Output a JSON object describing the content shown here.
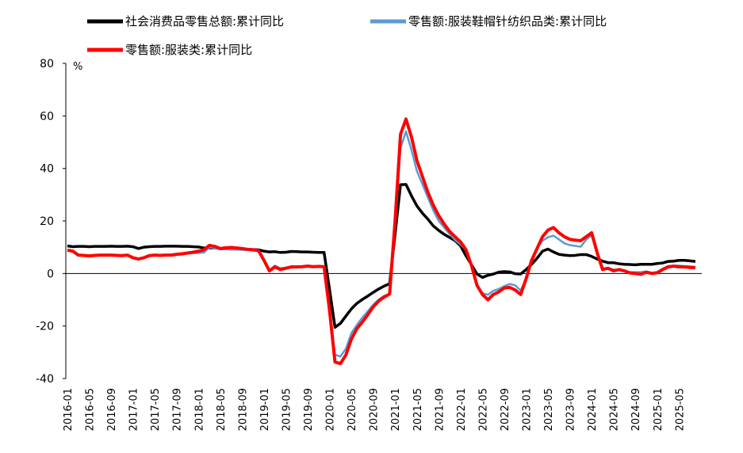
{
  "chart_data": {
    "type": "line",
    "y_unit": "%",
    "categories": [
      "2016-01",
      null,
      null,
      null,
      "2016-05",
      null,
      null,
      null,
      "2016-09",
      null,
      null,
      null,
      "2017-01",
      null,
      null,
      null,
      "2017-05",
      null,
      null,
      null,
      "2017-09",
      null,
      null,
      null,
      "2018-01",
      null,
      null,
      null,
      "2018-05",
      null,
      null,
      null,
      "2018-09",
      null,
      null,
      null,
      "2019-01",
      null,
      null,
      null,
      "2019-05",
      null,
      null,
      null,
      "2019-09",
      null,
      null,
      null,
      "2020-01",
      null,
      null,
      null,
      "2020-05",
      null,
      null,
      null,
      "2020-09",
      null,
      null,
      null,
      "2021-01",
      null,
      null,
      null,
      "2021-05",
      null,
      null,
      null,
      "2021-09",
      null,
      null,
      null,
      "2022-01",
      null,
      null,
      null,
      "2022-05",
      null,
      null,
      null,
      "2022-09",
      null,
      null,
      null,
      "2023-01",
      null,
      null,
      null,
      "2023-05",
      null,
      null,
      null,
      "2023-09",
      null,
      null,
      null,
      "2024-01",
      null,
      null,
      null,
      "2024-05",
      null,
      null,
      null,
      "2024-09",
      null,
      null,
      null,
      "2025-01",
      null,
      null,
      null,
      "2025-05",
      null,
      null,
      null
    ],
    "series": [
      {
        "name": "社会消费品零售总额:累计同比",
        "color": "#000000",
        "values": [
          10.5,
          10.2,
          10.3,
          10.3,
          10.2,
          10.3,
          10.3,
          10.3,
          10.4,
          10.3,
          10.3,
          10.4,
          10.2,
          9.5,
          10.0,
          10.2,
          10.3,
          10.3,
          10.4,
          10.4,
          10.4,
          10.3,
          10.3,
          10.2,
          10.1,
          9.7,
          9.8,
          9.7,
          9.5,
          9.4,
          9.3,
          9.3,
          9.3,
          9.2,
          9.1,
          9.0,
          8.5,
          8.2,
          8.3,
          8.0,
          8.1,
          8.4,
          8.3,
          8.2,
          8.2,
          8.1,
          8.0,
          8.0,
          -6,
          -20.5,
          -19,
          -16.2,
          -13.5,
          -11.4,
          -9.9,
          -8.6,
          -7.2,
          -5.9,
          -4.8,
          -3.9,
          15,
          33.8,
          33.9,
          29.6,
          25.7,
          23,
          20.7,
          18.1,
          16.4,
          14.9,
          13.7,
          12.5,
          10.5,
          6.7,
          3.3,
          -0.2,
          -1.5,
          -0.7,
          -0.2,
          0.5,
          0.7,
          0.6,
          -0.1,
          -0.2,
          1.5,
          3.5,
          5.8,
          8.5,
          9.3,
          8.2,
          7.3,
          7.0,
          6.8,
          6.9,
          7.2,
          7.2,
          6.5,
          5.5,
          4.7,
          4.1,
          4.1,
          3.7,
          3.5,
          3.4,
          3.3,
          3.5,
          3.5,
          3.5,
          3.8,
          4.0,
          4.6,
          4.7,
          5.0,
          5.0,
          4.8,
          4.6
        ]
      },
      {
        "name": "零售额:服装鞋帽针纺织品类:累计同比",
        "color": "#5b9bd5",
        "values": [
          8.6,
          8.3,
          7.0,
          6.8,
          6.7,
          6.8,
          6.9,
          6.9,
          6.9,
          6.8,
          6.7,
          6.9,
          6.0,
          5.6,
          6.0,
          6.7,
          6.9,
          6.9,
          7.0,
          7.0,
          7.2,
          7.4,
          7.6,
          7.8,
          7.8,
          8.0,
          10.0,
          9.6,
          9.2,
          9.3,
          9.2,
          9.1,
          9.0,
          8.9,
          8.8,
          8.6,
          5.2,
          1.2,
          3.0,
          2.0,
          2.2,
          2.7,
          2.7,
          2.7,
          2.9,
          2.8,
          2.8,
          2.6,
          -13,
          -30.9,
          -31.6,
          -28.6,
          -22.7,
          -19.6,
          -16.8,
          -14.4,
          -11.9,
          -9.9,
          -8.5,
          -7.7,
          18,
          47.7,
          54.1,
          47,
          39,
          34,
          29,
          24,
          20,
          17.5,
          15,
          12.7,
          11,
          8.9,
          2.9,
          -4.3,
          -7.5,
          -8.1,
          -6.6,
          -5.9,
          -4.8,
          -4.0,
          -4.5,
          -6.5,
          -2,
          5.4,
          9.8,
          12.5,
          13.8,
          14.4,
          13,
          11.5,
          10.8,
          10.5,
          10.2,
          12.9,
          14.5,
          8,
          2,
          2,
          1.5,
          1.5,
          1,
          0.5,
          0.5,
          0.5,
          0.8,
          0.3,
          0.5,
          1.8,
          2.8,
          3,
          3,
          2.8,
          2.7,
          2.5
        ]
      },
      {
        "name": "零售额:服装类:累计同比",
        "color": "#ff0000",
        "values": [
          8.9,
          8.5,
          7.0,
          6.9,
          6.7,
          6.9,
          7.0,
          7.0,
          7.0,
          6.9,
          6.8,
          7.0,
          6.0,
          5.5,
          6.0,
          6.8,
          7.0,
          6.9,
          7.0,
          7.0,
          7.3,
          7.5,
          7.8,
          8.1,
          8.5,
          9.0,
          10.7,
          10.3,
          9.5,
          9.8,
          9.9,
          9.7,
          9.5,
          9.2,
          9.0,
          8.7,
          5.0,
          1.0,
          2.5,
          1.5,
          2.0,
          2.5,
          2.5,
          2.6,
          2.8,
          2.6,
          2.7,
          2.6,
          -14,
          -33.7,
          -34.3,
          -31,
          -25,
          -21,
          -18.5,
          -15.7,
          -12.7,
          -10.5,
          -9,
          -7.8,
          20,
          53,
          58.8,
          52,
          43,
          37,
          31,
          26,
          22,
          18.8,
          16,
          14,
          12,
          9,
          3,
          -4.5,
          -8,
          -10,
          -8,
          -7,
          -5.5,
          -5.3,
          -6.3,
          -8,
          -2,
          5,
          9.5,
          14,
          16.5,
          17.5,
          15.5,
          14,
          13,
          12.7,
          12.5,
          14,
          15.5,
          8,
          1.5,
          2,
          1,
          1.5,
          1,
          0.2,
          0,
          -0.3,
          0.5,
          0,
          0.3,
          1.5,
          2.5,
          2.8,
          2.5,
          2.5,
          2.3,
          2.2
        ]
      }
    ],
    "ylim": [
      -40,
      80
    ],
    "yticks": [
      -40,
      -20,
      0,
      20,
      40,
      60,
      80
    ],
    "grid": false
  }
}
